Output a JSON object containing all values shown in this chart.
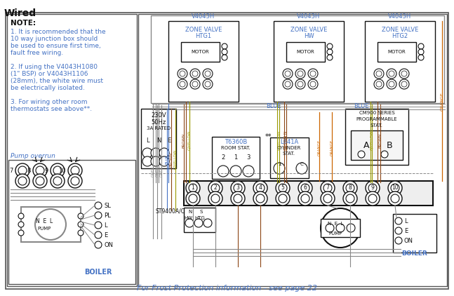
{
  "title": "Wired",
  "bg": "#ffffff",
  "note_lines": [
    "NOTE:",
    "1. It is recommended that the",
    "10 way junction box should",
    "be used to ensure first time,",
    "fault free wiring.",
    " ",
    "2. If using the V4043H1080",
    "(1\" BSP) or V4043H1106",
    "(28mm), the white wire must",
    "be electrically isolated.",
    " ",
    "3. For wiring other room",
    "thermostats see above**."
  ],
  "footer": "For Frost Protection information - see page 22",
  "grey": "#888888",
  "blue": "#4472c4",
  "brown": "#8B4513",
  "gyellow": "#999900",
  "orange": "#cc6600",
  "black": "#111111",
  "dkgrey": "#555555"
}
